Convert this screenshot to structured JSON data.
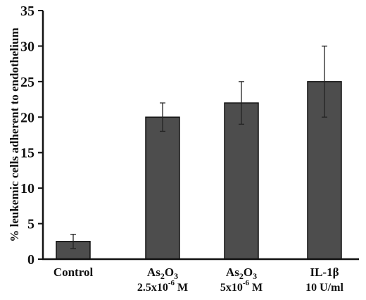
{
  "chart_data": {
    "type": "bar",
    "ylabel": "% leukemic cells adherent to endothelium",
    "xlabel": "",
    "ylim": [
      0,
      35
    ],
    "yticks": [
      0,
      5,
      10,
      15,
      20,
      25,
      30,
      35
    ],
    "grid": false,
    "legend": "none",
    "bar_color": "#4d4d4d",
    "categories": [
      {
        "label": "Control",
        "sub": ""
      },
      {
        "label": "As2O3",
        "sub": "2.5x10-6 M"
      },
      {
        "label": "As2O3",
        "sub": "5x10-6 M"
      },
      {
        "label": "IL-1β",
        "sub": "10 U/ml"
      }
    ],
    "values": [
      2.5,
      20,
      22,
      25
    ],
    "error_upper": [
      3.5,
      22,
      25,
      30
    ],
    "error_lower": [
      1.5,
      18,
      19,
      20
    ]
  }
}
